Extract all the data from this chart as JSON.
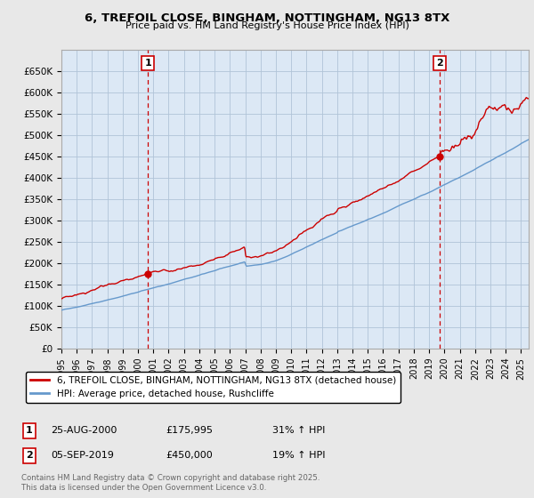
{
  "title": "6, TREFOIL CLOSE, BINGHAM, NOTTINGHAM, NG13 8TX",
  "subtitle": "Price paid vs. HM Land Registry's House Price Index (HPI)",
  "legend_label_red": "6, TREFOIL CLOSE, BINGHAM, NOTTINGHAM, NG13 8TX (detached house)",
  "legend_label_blue": "HPI: Average price, detached house, Rushcliffe",
  "annotation1_label": "1",
  "annotation1_date": "25-AUG-2000",
  "annotation1_price": "£175,995",
  "annotation1_hpi": "31% ↑ HPI",
  "annotation2_label": "2",
  "annotation2_date": "05-SEP-2019",
  "annotation2_price": "£450,000",
  "annotation2_hpi": "19% ↑ HPI",
  "copyright": "Contains HM Land Registry data © Crown copyright and database right 2025.\nThis data is licensed under the Open Government Licence v3.0.",
  "xlim_start": 1995.0,
  "xlim_end": 2025.5,
  "ylim_min": 0,
  "ylim_max": 700000,
  "yticks": [
    0,
    50000,
    100000,
    150000,
    200000,
    250000,
    300000,
    350000,
    400000,
    450000,
    500000,
    550000,
    600000,
    650000
  ],
  "color_red": "#cc0000",
  "color_blue": "#6699cc",
  "bg_color": "#e8e8e8",
  "plot_bg": "#dce8f5",
  "grid_color": "#b0c4d8",
  "marker1_x": 2000.646,
  "marker1_y": 175995,
  "marker2_x": 2019.676,
  "marker2_y": 450000
}
